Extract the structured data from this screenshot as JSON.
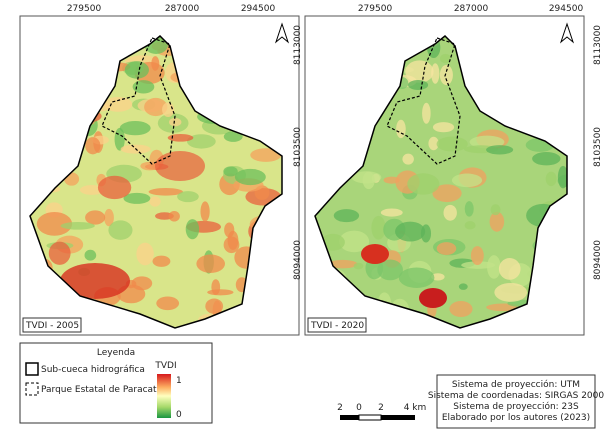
{
  "panels": [
    {
      "label": "TVDI - 2005"
    },
    {
      "label": "TVDI - 2020"
    }
  ],
  "x_coords": [
    279500,
    287000,
    294500
  ],
  "y_coords": [
    8113000,
    8103500,
    8094000
  ],
  "legend": {
    "title": "Leyenda",
    "items": [
      "Sub-cueca hidrográfica",
      "Parque Estatal de Paracatu"
    ],
    "ramp_title": "TVDI",
    "ramp_max": 1,
    "ramp_min": 0
  },
  "scale_bar": {
    "labels": [
      2,
      0,
      2,
      "4 km"
    ]
  },
  "info": [
    "Sistema de proyección: UTM",
    "Sistema de coordenadas: SIRGAS 2000",
    "Sistema de proyección: 23S",
    "Elaborado por los autores (2023)"
  ]
}
